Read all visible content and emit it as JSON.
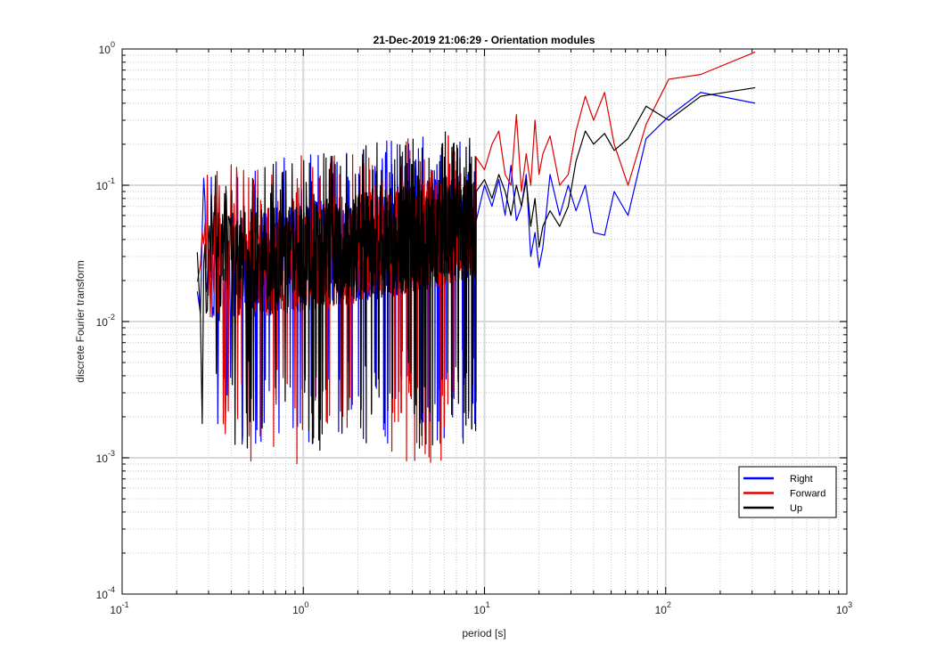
{
  "chart_data": {
    "type": "line",
    "title": "21-Dec-2019 21:06:29 - Orientation modules",
    "xlabel": "period [s]",
    "ylabel": "discrete Fourier transform",
    "xscale": "log",
    "yscale": "log",
    "xlim": [
      0.1,
      1000
    ],
    "ylim": [
      0.0001,
      1
    ],
    "x_ticks": [
      {
        "base": "10",
        "exp": "-1"
      },
      {
        "base": "10",
        "exp": "0"
      },
      {
        "base": "10",
        "exp": "1"
      },
      {
        "base": "10",
        "exp": "2"
      },
      {
        "base": "10",
        "exp": "3"
      }
    ],
    "y_ticks": [
      {
        "base": "10",
        "exp": "-4"
      },
      {
        "base": "10",
        "exp": "-3"
      },
      {
        "base": "10",
        "exp": "-2"
      },
      {
        "base": "10",
        "exp": "-1"
      },
      {
        "base": "10",
        "exp": "0"
      }
    ],
    "grid": true,
    "minor_grid": true,
    "legend_position": "bottom-right",
    "x_min_period": 0.26,
    "series": [
      {
        "name": "Right",
        "color": "#0000ff",
        "dense_band": {
          "x_from": 0.26,
          "x_to": 9.0,
          "samples": 1000,
          "min_log": -2.9,
          "seed": 11
        },
        "points": [
          [
            9,
            0.055
          ],
          [
            10,
            0.1
          ],
          [
            11,
            0.07
          ],
          [
            12,
            0.11
          ],
          [
            13,
            0.06
          ],
          [
            14,
            0.14
          ],
          [
            15,
            0.055
          ],
          [
            16,
            0.07
          ],
          [
            17,
            0.12
          ],
          [
            18,
            0.03
          ],
          [
            19,
            0.045
          ],
          [
            20,
            0.025
          ],
          [
            21,
            0.035
          ],
          [
            23,
            0.12
          ],
          [
            26,
            0.06
          ],
          [
            29,
            0.1
          ],
          [
            32,
            0.065
          ],
          [
            36,
            0.1
          ],
          [
            40,
            0.045
          ],
          [
            46,
            0.043
          ],
          [
            52,
            0.09
          ],
          [
            62,
            0.06
          ],
          [
            78,
            0.22
          ],
          [
            104,
            0.32
          ],
          [
            156,
            0.48
          ],
          [
            312,
            0.4
          ]
        ]
      },
      {
        "name": "Forward",
        "color": "#dd0000",
        "dense_band": {
          "x_from": 0.26,
          "x_to": 9.0,
          "samples": 1000,
          "min_log": -3.05,
          "seed": 23
        },
        "points": [
          [
            9,
            0.16
          ],
          [
            10,
            0.13
          ],
          [
            11,
            0.2
          ],
          [
            12,
            0.25
          ],
          [
            13,
            0.12
          ],
          [
            14,
            0.1
          ],
          [
            15,
            0.33
          ],
          [
            16,
            0.09
          ],
          [
            17,
            0.17
          ],
          [
            18,
            0.1
          ],
          [
            19,
            0.3
          ],
          [
            20,
            0.12
          ],
          [
            21,
            0.17
          ],
          [
            23,
            0.23
          ],
          [
            26,
            0.1
          ],
          [
            29,
            0.12
          ],
          [
            32,
            0.25
          ],
          [
            36,
            0.45
          ],
          [
            40,
            0.3
          ],
          [
            46,
            0.48
          ],
          [
            52,
            0.2
          ],
          [
            62,
            0.1
          ],
          [
            78,
            0.28
          ],
          [
            104,
            0.6
          ],
          [
            156,
            0.65
          ],
          [
            312,
            0.95
          ]
        ]
      },
      {
        "name": "Up",
        "color": "#000000",
        "dense_band": {
          "x_from": 0.26,
          "x_to": 9.0,
          "samples": 1000,
          "min_log": -2.95,
          "seed": 37
        },
        "points": [
          [
            9,
            0.09
          ],
          [
            10,
            0.11
          ],
          [
            11,
            0.08
          ],
          [
            12,
            0.12
          ],
          [
            13,
            0.09
          ],
          [
            14,
            0.06
          ],
          [
            15,
            0.1
          ],
          [
            16,
            0.07
          ],
          [
            17,
            0.11
          ],
          [
            18,
            0.05
          ],
          [
            19,
            0.08
          ],
          [
            20,
            0.035
          ],
          [
            21,
            0.05
          ],
          [
            23,
            0.065
          ],
          [
            26,
            0.05
          ],
          [
            29,
            0.07
          ],
          [
            32,
            0.15
          ],
          [
            36,
            0.25
          ],
          [
            40,
            0.2
          ],
          [
            46,
            0.24
          ],
          [
            52,
            0.18
          ],
          [
            62,
            0.22
          ],
          [
            78,
            0.38
          ],
          [
            104,
            0.3
          ],
          [
            156,
            0.45
          ],
          [
            312,
            0.52
          ]
        ]
      }
    ]
  }
}
